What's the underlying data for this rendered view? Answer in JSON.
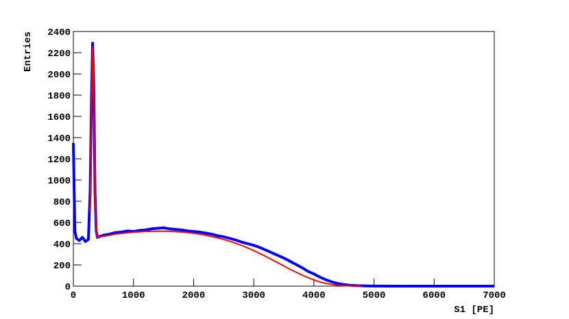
{
  "chart_data": {
    "type": "line",
    "xlabel": "S1 [PE]",
    "ylabel": "Entries",
    "x": [
      0,
      25,
      50,
      100,
      150,
      200,
      250,
      280,
      300,
      320,
      340,
      360,
      380,
      400,
      450,
      500,
      600,
      700,
      800,
      900,
      1000,
      1100,
      1200,
      1300,
      1400,
      1500,
      1600,
      1700,
      1800,
      1900,
      2000,
      2100,
      2200,
      2300,
      2400,
      2500,
      2600,
      2700,
      2800,
      2900,
      3000,
      3100,
      3200,
      3300,
      3400,
      3500,
      3600,
      3700,
      3800,
      3900,
      4000,
      4100,
      4200,
      4300,
      4400,
      4500,
      4600,
      4700,
      4800,
      4900,
      5000,
      5500,
      6000,
      6500,
      7000
    ],
    "series": [
      {
        "color": "#0000ff",
        "values": [
          1350,
          520,
          450,
          430,
          460,
          420,
          440,
          900,
          1700,
          2290,
          1900,
          900,
          520,
          460,
          470,
          480,
          490,
          505,
          510,
          520,
          515,
          525,
          530,
          540,
          545,
          550,
          540,
          535,
          530,
          520,
          515,
          510,
          500,
          490,
          475,
          465,
          450,
          435,
          415,
          400,
          385,
          365,
          340,
          315,
          290,
          265,
          235,
          205,
          175,
          140,
          115,
          85,
          60,
          40,
          25,
          15,
          8,
          5,
          3,
          2,
          1,
          0,
          0,
          0,
          0
        ]
      },
      {
        "color": "#ff0000",
        "values": [
          null,
          null,
          null,
          null,
          null,
          null,
          null,
          700,
          1600,
          2250,
          1900,
          900,
          500,
          460,
          465,
          470,
          480,
          490,
          497,
          503,
          508,
          512,
          515,
          517,
          518,
          518,
          517,
          514,
          510,
          505,
          498,
          490,
          480,
          468,
          455,
          440,
          423,
          404,
          383,
          360,
          335,
          308,
          280,
          250,
          220,
          190,
          160,
          132,
          105,
          80,
          58,
          40,
          26,
          16,
          9,
          5,
          3,
          2,
          1,
          null,
          null,
          null,
          null,
          null,
          null
        ]
      }
    ],
    "xlim": [
      0,
      7000
    ],
    "xticks": [
      0,
      1000,
      2000,
      3000,
      4000,
      5000,
      6000,
      7000
    ],
    "ylim": [
      0,
      2400
    ],
    "yticks": [
      0,
      200,
      400,
      600,
      800,
      1000,
      1200,
      1400,
      1600,
      1800,
      2000,
      2200,
      2400
    ]
  }
}
